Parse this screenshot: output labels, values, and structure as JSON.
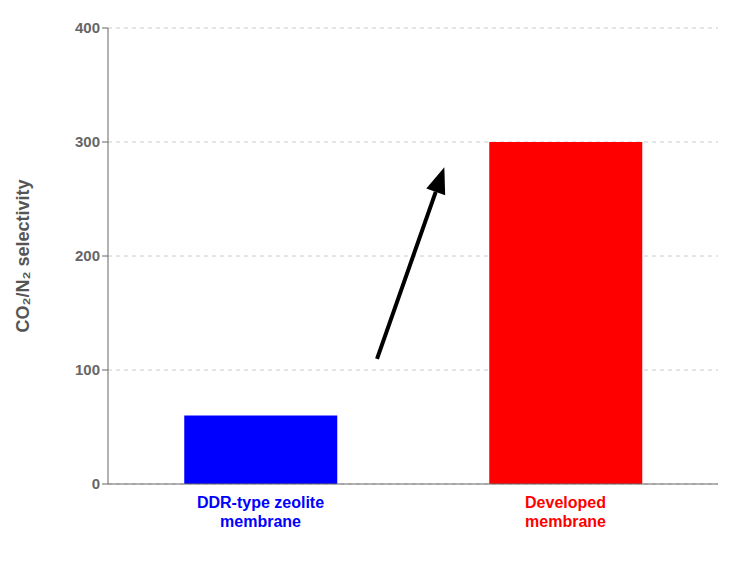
{
  "chart_data": {
    "type": "bar",
    "categories": [
      "DDR-type zeolite\nmembrane",
      "Developed\nmembrane"
    ],
    "values": [
      60,
      300
    ],
    "colors": [
      "#0000ff",
      "#ff0000"
    ],
    "ylabel": "CO₂/N₂ selectivity",
    "ylim": [
      0,
      400
    ],
    "yticks": [
      0,
      100,
      200,
      300,
      400
    ],
    "grid": true
  }
}
